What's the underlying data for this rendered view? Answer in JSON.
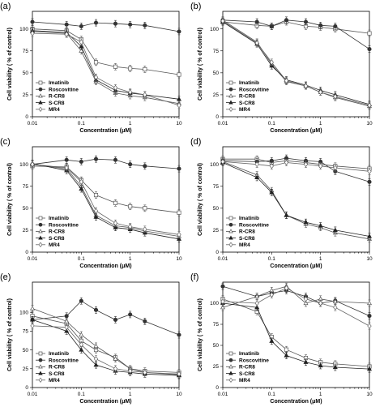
{
  "axis": {
    "xlabel": "Concentration (μM)",
    "ylabel": "Cell viability ( % of control)",
    "x_ticks": [
      "0.01",
      "0.1",
      "1",
      "10"
    ],
    "y_ticks": [
      "0",
      "25",
      "50",
      "75",
      "100"
    ]
  },
  "legend_labels": [
    "Imatinib",
    "Roscovitine",
    "R-CR8",
    "S-CR8",
    "MR4"
  ],
  "chart_data": [
    {
      "type": "line",
      "panel_label": "(a)",
      "x_scale": "log",
      "xlim": [
        0.01,
        10
      ],
      "ylim": [
        0,
        120
      ],
      "xlabel": "Concentration (μM)",
      "ylabel": "Cell viability ( % of control)",
      "series": [
        {
          "name": "Imatinib",
          "marker": "square-open",
          "x": [
            0.01,
            0.05,
            0.1,
            0.2,
            0.5,
            1,
            2,
            10
          ],
          "y": [
            100,
            98,
            88,
            62,
            57,
            55,
            54,
            48
          ]
        },
        {
          "name": "Roscovitine",
          "marker": "circle-filled",
          "x": [
            0.01,
            0.05,
            0.1,
            0.2,
            0.5,
            1,
            2,
            10
          ],
          "y": [
            108,
            105,
            103,
            107,
            106,
            105,
            104,
            97
          ]
        },
        {
          "name": "R-CR8",
          "marker": "triangle-open",
          "x": [
            0.01,
            0.05,
            0.1,
            0.2,
            0.5,
            1,
            2,
            10
          ],
          "y": [
            97,
            95,
            75,
            40,
            27,
            24,
            22,
            15
          ]
        },
        {
          "name": "S-CR8",
          "marker": "triangle-filled",
          "x": [
            0.01,
            0.05,
            0.1,
            0.2,
            0.5,
            1,
            2,
            10
          ],
          "y": [
            98,
            96,
            80,
            42,
            30,
            27,
            25,
            20
          ]
        },
        {
          "name": "MR4",
          "marker": "diamond-open",
          "x": [
            0.01,
            0.05,
            0.1,
            0.2,
            0.5,
            1,
            2,
            10
          ],
          "y": [
            95,
            94,
            85,
            45,
            33,
            28,
            25,
            13
          ]
        }
      ]
    },
    {
      "type": "line",
      "panel_label": "(b)",
      "x_scale": "log",
      "xlim": [
        0.01,
        10
      ],
      "ylim": [
        0,
        120
      ],
      "xlabel": "Concentration (μM)",
      "ylabel": "Cell viability ( % of control)",
      "series": [
        {
          "name": "Imatinib",
          "marker": "square-open",
          "x": [
            0.01,
            0.05,
            0.1,
            0.2,
            0.5,
            1,
            2,
            10
          ],
          "y": [
            108,
            104,
            103,
            108,
            103,
            102,
            100,
            95
          ]
        },
        {
          "name": "Roscovitine",
          "marker": "circle-filled",
          "x": [
            0.01,
            0.05,
            0.1,
            0.2,
            0.5,
            1,
            2,
            10
          ],
          "y": [
            110,
            108,
            103,
            110,
            108,
            104,
            103,
            77
          ]
        },
        {
          "name": "R-CR8",
          "marker": "triangle-open",
          "x": [
            0.01,
            0.05,
            0.1,
            0.2,
            0.5,
            1,
            2,
            10
          ],
          "y": [
            110,
            85,
            60,
            40,
            35,
            28,
            22,
            12
          ]
        },
        {
          "name": "S-CR8",
          "marker": "triangle-filled",
          "x": [
            0.01,
            0.05,
            0.1,
            0.2,
            0.5,
            1,
            2,
            10
          ],
          "y": [
            108,
            83,
            58,
            42,
            36,
            30,
            25,
            14
          ]
        },
        {
          "name": "MR4",
          "marker": "diamond-open",
          "x": [
            0.01,
            0.05,
            0.1,
            0.2,
            0.5,
            1,
            2,
            10
          ],
          "y": [
            109,
            84,
            62,
            41,
            35,
            28,
            23,
            13
          ]
        }
      ]
    },
    {
      "type": "line",
      "panel_label": "(c)",
      "x_scale": "log",
      "xlim": [
        0.01,
        10
      ],
      "ylim": [
        0,
        120
      ],
      "xlabel": "Concentration (μM)",
      "ylabel": "Cell viability ( % of control)",
      "series": [
        {
          "name": "Imatinib",
          "marker": "square-open",
          "x": [
            0.01,
            0.05,
            0.1,
            0.2,
            0.5,
            1,
            2,
            10
          ],
          "y": [
            98,
            97,
            82,
            65,
            56,
            52,
            50,
            45
          ]
        },
        {
          "name": "Roscovitine",
          "marker": "circle-filled",
          "x": [
            0.01,
            0.05,
            0.1,
            0.2,
            0.5,
            1,
            2,
            10
          ],
          "y": [
            100,
            105,
            103,
            106,
            105,
            100,
            98,
            95
          ]
        },
        {
          "name": "R-CR8",
          "marker": "triangle-open",
          "x": [
            0.01,
            0.05,
            0.1,
            0.2,
            0.5,
            1,
            2,
            10
          ],
          "y": [
            100,
            95,
            75,
            42,
            30,
            28,
            24,
            18
          ]
        },
        {
          "name": "S-CR8",
          "marker": "triangle-filled",
          "x": [
            0.01,
            0.05,
            0.1,
            0.2,
            0.5,
            1,
            2,
            10
          ],
          "y": [
            101,
            93,
            72,
            40,
            28,
            26,
            22,
            15
          ]
        },
        {
          "name": "MR4",
          "marker": "diamond-open",
          "x": [
            0.01,
            0.05,
            0.1,
            0.2,
            0.5,
            1,
            2,
            10
          ],
          "y": [
            100,
            96,
            80,
            47,
            33,
            29,
            26,
            20
          ]
        }
      ]
    },
    {
      "type": "line",
      "panel_label": "(d)",
      "x_scale": "log",
      "xlim": [
        0.01,
        10
      ],
      "ylim": [
        0,
        120
      ],
      "xlabel": "Concentration (μM)",
      "ylabel": "Cell viability ( % of control)",
      "series": [
        {
          "name": "Imatinib",
          "marker": "square-open",
          "x": [
            0.01,
            0.05,
            0.1,
            0.2,
            0.5,
            1,
            2,
            10
          ],
          "y": [
            106,
            106,
            102,
            104,
            102,
            100,
            98,
            95
          ]
        },
        {
          "name": "Roscovitine",
          "marker": "circle-filled",
          "x": [
            0.01,
            0.05,
            0.1,
            0.2,
            0.5,
            1,
            2,
            10
          ],
          "y": [
            104,
            103,
            104,
            107,
            104,
            103,
            92,
            80
          ]
        },
        {
          "name": "R-CR8",
          "marker": "triangle-open",
          "x": [
            0.01,
            0.05,
            0.1,
            0.2,
            0.5,
            1,
            2,
            10
          ],
          "y": [
            103,
            88,
            70,
            42,
            32,
            28,
            22,
            15
          ]
        },
        {
          "name": "S-CR8",
          "marker": "triangle-filled",
          "x": [
            0.01,
            0.05,
            0.1,
            0.2,
            0.5,
            1,
            2,
            10
          ],
          "y": [
            102,
            85,
            68,
            42,
            34,
            30,
            25,
            18
          ]
        },
        {
          "name": "MR4",
          "marker": "diamond-open",
          "x": [
            0.01,
            0.05,
            0.1,
            0.2,
            0.5,
            1,
            2,
            10
          ],
          "y": [
            103,
            100,
            98,
            102,
            100,
            98,
            96,
            92
          ]
        }
      ]
    },
    {
      "type": "line",
      "panel_label": "(e)",
      "x_scale": "log",
      "xlim": [
        0.01,
        10
      ],
      "ylim": [
        0,
        140
      ],
      "xlabel": "Concentration (μM)",
      "ylabel": "Cell viability ( % of control)",
      "series": [
        {
          "name": "Imatinib",
          "marker": "square-open",
          "x": [
            0.01,
            0.05,
            0.1,
            0.2,
            0.5,
            1,
            2,
            10
          ],
          "y": [
            95,
            85,
            62,
            50,
            40,
            25,
            22,
            20
          ]
        },
        {
          "name": "Roscovitine",
          "marker": "circle-filled",
          "x": [
            0.01,
            0.05,
            0.1,
            0.2,
            0.5,
            1,
            2,
            10
          ],
          "y": [
            90,
            95,
            115,
            103,
            90,
            97,
            88,
            70
          ]
        },
        {
          "name": "R-CR8",
          "marker": "triangle-open",
          "x": [
            0.01,
            0.05,
            0.1,
            0.2,
            0.5,
            1,
            2,
            10
          ],
          "y": [
            105,
            88,
            70,
            55,
            38,
            25,
            20,
            17
          ]
        },
        {
          "name": "S-CR8",
          "marker": "triangle-filled",
          "x": [
            0.01,
            0.05,
            0.1,
            0.2,
            0.5,
            1,
            2,
            10
          ],
          "y": [
            90,
            75,
            50,
            30,
            22,
            20,
            18,
            16
          ]
        },
        {
          "name": "MR4",
          "marker": "diamond-open",
          "x": [
            0.01,
            0.05,
            0.1,
            0.2,
            0.5,
            1,
            2,
            10
          ],
          "y": [
            82,
            80,
            57,
            38,
            25,
            22,
            20,
            18
          ]
        }
      ]
    },
    {
      "type": "line",
      "panel_label": "(f)",
      "x_scale": "log",
      "xlim": [
        0.01,
        10
      ],
      "ylim": [
        0,
        125
      ],
      "xlabel": "Concentration (μM)",
      "ylabel": "Cell viability ( % of control)",
      "series": [
        {
          "name": "Imatinib",
          "marker": "square-open",
          "x": [
            0.01,
            0.05,
            0.1,
            0.2,
            0.5,
            1,
            2,
            10
          ],
          "y": [
            105,
            90,
            60,
            45,
            35,
            30,
            28,
            25
          ]
        },
        {
          "name": "Roscovitine",
          "marker": "circle-filled",
          "x": [
            0.01,
            0.05,
            0.1,
            0.2,
            0.5,
            1,
            2,
            10
          ],
          "y": [
            120,
            108,
            112,
            115,
            108,
            100,
            103,
            85
          ]
        },
        {
          "name": "R-CR8",
          "marker": "triangle-open",
          "x": [
            0.01,
            0.05,
            0.1,
            0.2,
            0.5,
            1,
            2,
            10
          ],
          "y": [
            95,
            108,
            115,
            120,
            100,
            105,
            102,
            100
          ]
        },
        {
          "name": "S-CR8",
          "marker": "triangle-filled",
          "x": [
            0.01,
            0.05,
            0.1,
            0.2,
            0.5,
            1,
            2,
            10
          ],
          "y": [
            100,
            95,
            55,
            38,
            30,
            26,
            24,
            22
          ]
        },
        {
          "name": "MR4",
          "marker": "diamond-open",
          "x": [
            0.01,
            0.05,
            0.1,
            0.2,
            0.5,
            1,
            2,
            10
          ],
          "y": [
            102,
            100,
            110,
            118,
            105,
            100,
            95,
            73
          ]
        }
      ]
    }
  ]
}
